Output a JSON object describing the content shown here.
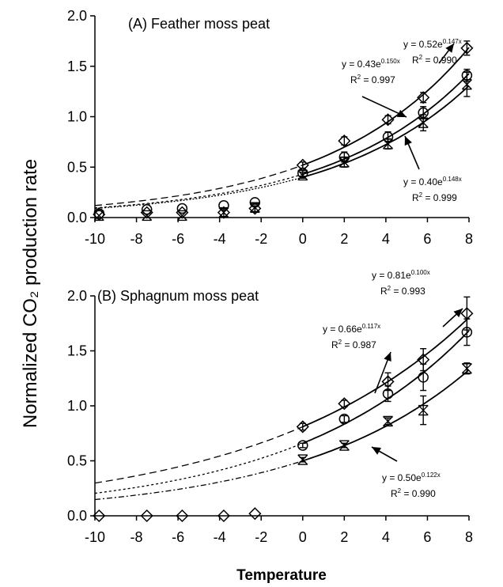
{
  "y_label": "Normalized CO₂  production rate",
  "x_label": "Temperature",
  "chart_data": [
    {
      "type": "scatter",
      "title": "(A) Feather moss peat",
      "xlim": [
        -10,
        8
      ],
      "ylim": [
        0,
        2
      ],
      "xticks": [
        "-10",
        "-8",
        "-6",
        "-4",
        "-2",
        "0",
        "2",
        "4",
        "6",
        "8"
      ],
      "yticks": [
        "0.0",
        "0.5",
        "1.0",
        "1.5",
        "2.0"
      ],
      "series": [
        {
          "marker": "diamond",
          "x": [
            -9.8,
            -7.5,
            -5.8,
            -3.8,
            -2.3,
            0,
            2,
            4.1,
            5.8,
            7.9
          ],
          "y": [
            0.03,
            0.05,
            0.05,
            0.05,
            0.09,
            0.52,
            0.76,
            0.97,
            1.19,
            1.68
          ],
          "err": [
            0,
            0,
            0,
            0,
            0,
            0.03,
            0.04,
            0.04,
            0.05,
            0.07
          ],
          "fit": {
            "a": 0.52,
            "b": 0.147,
            "equation": "y = 0.52e",
            "exponent": "0.147x",
            "r2": "R",
            "r2_value": "= 0.990"
          }
        },
        {
          "marker": "circle",
          "x": [
            -9.8,
            -7.5,
            -5.8,
            -3.8,
            -2.3,
            0,
            2,
            4.1,
            5.8,
            7.9
          ],
          "y": [
            0.04,
            0.08,
            0.09,
            0.12,
            0.15,
            0.44,
            0.6,
            0.8,
            1.04,
            1.41
          ],
          "err": [
            0,
            0,
            0,
            0,
            0,
            0.03,
            0.05,
            0.05,
            0.06,
            0.06
          ],
          "fit": {
            "a": 0.43,
            "b": 0.15,
            "equation": "y = 0.43e",
            "exponent": "0.150x",
            "r2": "R",
            "r2_value": "= 0.997"
          }
        },
        {
          "marker": "hourglass",
          "x": [
            -9.8,
            -7.5,
            -5.8,
            -3.8,
            -2.3,
            0,
            2,
            4.1,
            5.8,
            7.9
          ],
          "y": [
            0.02,
            0.02,
            0.02,
            0.05,
            0.1,
            0.42,
            0.55,
            0.73,
            0.94,
            1.32
          ],
          "err": [
            0,
            0,
            0,
            0.04,
            0.04,
            0.03,
            0.05,
            0.05,
            0.08,
            0.12
          ],
          "fit": {
            "a": 0.4,
            "b": 0.148,
            "equation": "y = 0.40e",
            "exponent": "0.148x",
            "r2": "R",
            "r2_value": "= 0.999"
          }
        }
      ]
    },
    {
      "type": "scatter",
      "title": "(B) Sphagnum moss peat",
      "xlim": [
        -10,
        8
      ],
      "ylim": [
        0,
        2
      ],
      "xticks": [
        "-10",
        "-8",
        "-6",
        "-4",
        "-2",
        "0",
        "2",
        "4",
        "6",
        "8"
      ],
      "yticks": [
        "0.0",
        "0.5",
        "1.0",
        "1.5",
        "2.0"
      ],
      "series": [
        {
          "marker": "diamond",
          "x": [
            -9.8,
            -7.5,
            -5.8,
            -3.8,
            -2.3,
            0,
            2,
            4.1,
            5.8,
            7.9
          ],
          "y": [
            0.0,
            0.0,
            0.0,
            0.0,
            0.02,
            0.81,
            1.02,
            1.22,
            1.42,
            1.84
          ],
          "err": [
            0,
            0,
            0,
            0,
            0,
            0.03,
            0.03,
            0.08,
            0.1,
            0.15
          ],
          "fit": {
            "a": 0.81,
            "b": 0.1,
            "equation": "y = 0.81e",
            "exponent": "0.100x",
            "r2": "R",
            "r2_value": "= 0.993"
          }
        },
        {
          "marker": "circle",
          "x": [
            0,
            2,
            4.1,
            5.8,
            7.9
          ],
          "y": [
            0.64,
            0.88,
            1.11,
            1.26,
            1.67
          ],
          "err": [
            0.02,
            0.03,
            0.07,
            0.12,
            0.12
          ],
          "fit": {
            "a": 0.66,
            "b": 0.117,
            "equation": "y = 0.66e",
            "exponent": "0.117x",
            "r2": "R",
            "r2_value": "= 0.987"
          }
        },
        {
          "marker": "hourglass",
          "x": [
            0,
            2,
            4.1,
            5.8,
            7.9
          ],
          "y": [
            0.51,
            0.64,
            0.86,
            0.96,
            1.34
          ],
          "err": [
            0.02,
            0.02,
            0.03,
            0.13,
            0.05
          ],
          "fit": {
            "a": 0.5,
            "b": 0.122,
            "equation": "y = 0.50e",
            "exponent": "0.122x",
            "r2": "R",
            "r2_value": "= 0.990"
          }
        }
      ]
    }
  ]
}
